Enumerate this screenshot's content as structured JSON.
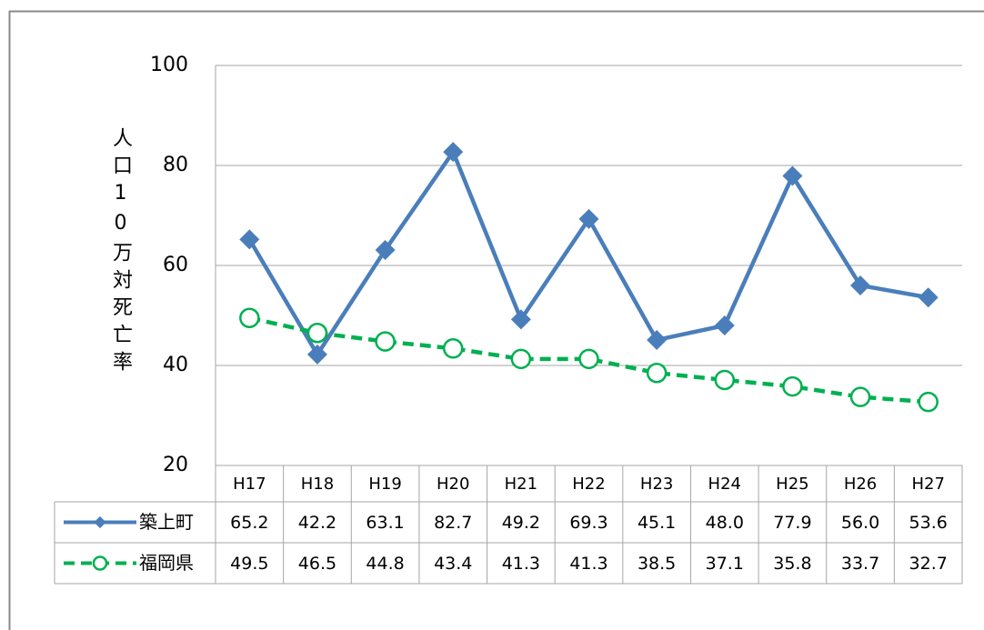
{
  "chart_data": {
    "type": "line",
    "y_label": "人口10万対死亡率",
    "categories": [
      "H17",
      "H18",
      "H19",
      "H20",
      "H21",
      "H22",
      "H23",
      "H24",
      "H25",
      "H26",
      "H27"
    ],
    "series": [
      {
        "name": "築上町",
        "color": "#4a7ebb",
        "marker": "diamond",
        "dashed": false,
        "values": [
          65.2,
          42.2,
          63.1,
          82.7,
          49.2,
          69.3,
          45.1,
          48.0,
          77.9,
          56.0,
          53.6
        ],
        "value_labels": [
          "65.2",
          "42.2",
          "63.1",
          "82.7",
          "49.2",
          "69.3",
          "45.1",
          "48.0",
          "77.9",
          "56.0",
          "53.6"
        ]
      },
      {
        "name": "福岡県",
        "color": "#00b050",
        "marker": "circle",
        "dashed": true,
        "values": [
          49.5,
          46.5,
          44.8,
          43.4,
          41.3,
          41.3,
          38.5,
          37.1,
          35.8,
          33.7,
          32.7
        ],
        "value_labels": [
          "49.5",
          "46.5",
          "44.8",
          "43.4",
          "41.3",
          "41.3",
          "38.5",
          "37.1",
          "35.8",
          "33.7",
          "32.7"
        ]
      }
    ],
    "ylim": [
      20,
      100
    ],
    "yticks": [
      20,
      40,
      60,
      80,
      100
    ],
    "grid": true
  }
}
